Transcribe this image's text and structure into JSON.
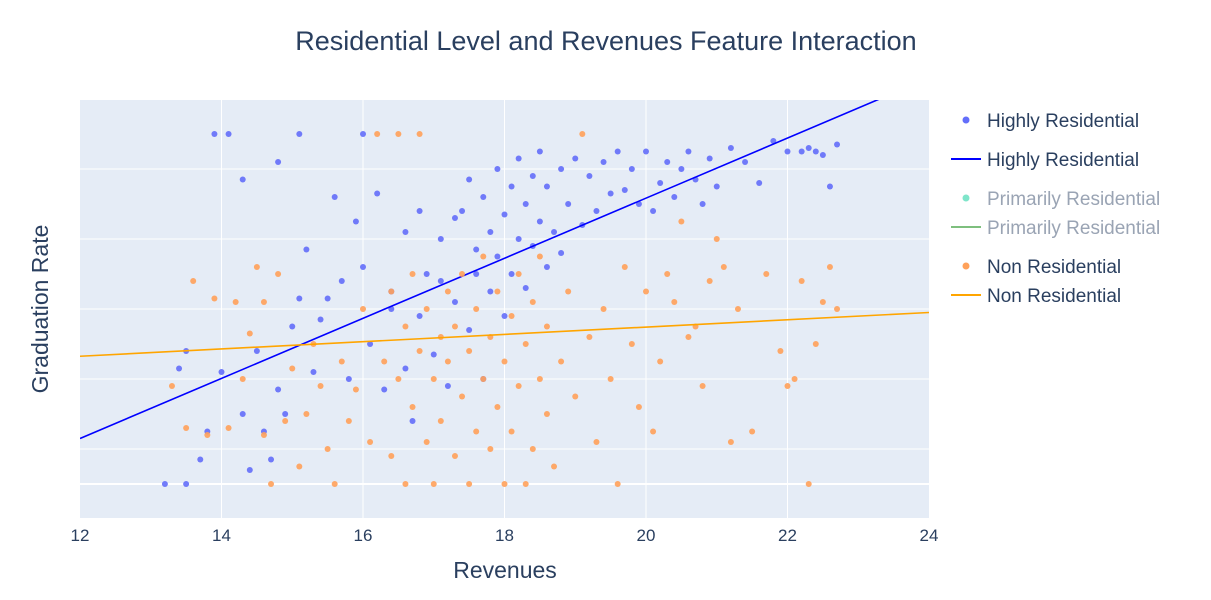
{
  "chart_data": {
    "type": "scatter",
    "title": "Residential Level and Revenues Feature Interaction",
    "xlabel": "Revenues",
    "ylabel": "Graduation Rate",
    "xlim": [
      12,
      24
    ],
    "ylim": [
      0,
      1.15
    ],
    "x_ticks": [
      12,
      14,
      16,
      18,
      20,
      22,
      24
    ],
    "y_ticks": [
      0.1,
      0.3,
      0.5,
      0.7,
      0.9,
      1.1
    ],
    "y_tick_labels_shown": false,
    "grid": true,
    "legend_position": "right",
    "series": [
      {
        "name": "Highly Residential",
        "mode": "markers",
        "color": "#636efa",
        "visible": true,
        "points": [
          [
            13.2,
            0.0
          ],
          [
            13.5,
            0.0
          ],
          [
            13.4,
            0.33
          ],
          [
            13.5,
            0.38
          ],
          [
            13.7,
            0.07
          ],
          [
            13.8,
            0.15
          ],
          [
            13.9,
            1.0
          ],
          [
            14.0,
            0.32
          ],
          [
            14.1,
            1.0
          ],
          [
            14.3,
            0.87
          ],
          [
            14.3,
            0.2
          ],
          [
            14.4,
            0.04
          ],
          [
            14.5,
            0.38
          ],
          [
            14.6,
            0.15
          ],
          [
            14.7,
            0.07
          ],
          [
            14.8,
            0.27
          ],
          [
            14.8,
            0.92
          ],
          [
            14.9,
            0.2
          ],
          [
            15.0,
            0.45
          ],
          [
            15.1,
            1.0
          ],
          [
            15.1,
            0.53
          ],
          [
            15.2,
            0.67
          ],
          [
            15.3,
            0.32
          ],
          [
            15.4,
            0.47
          ],
          [
            15.5,
            0.53
          ],
          [
            15.6,
            0.82
          ],
          [
            15.7,
            0.58
          ],
          [
            15.8,
            0.3
          ],
          [
            15.9,
            0.75
          ],
          [
            16.0,
            0.62
          ],
          [
            16.0,
            1.0
          ],
          [
            16.1,
            0.4
          ],
          [
            16.2,
            0.83
          ],
          [
            16.3,
            0.27
          ],
          [
            16.4,
            0.55
          ],
          [
            16.4,
            0.5
          ],
          [
            16.6,
            0.33
          ],
          [
            16.6,
            0.72
          ],
          [
            16.7,
            0.18
          ],
          [
            16.8,
            0.78
          ],
          [
            16.8,
            0.48
          ],
          [
            16.9,
            0.6
          ],
          [
            17.0,
            0.37
          ],
          [
            17.1,
            0.7
          ],
          [
            17.1,
            0.58
          ],
          [
            17.2,
            0.28
          ],
          [
            17.3,
            0.76
          ],
          [
            17.3,
            0.52
          ],
          [
            17.4,
            0.78
          ],
          [
            17.5,
            0.44
          ],
          [
            17.5,
            0.87
          ],
          [
            17.6,
            0.67
          ],
          [
            17.6,
            0.6
          ],
          [
            17.7,
            0.3
          ],
          [
            17.7,
            0.82
          ],
          [
            17.8,
            0.72
          ],
          [
            17.8,
            0.55
          ],
          [
            17.9,
            0.9
          ],
          [
            17.9,
            0.65
          ],
          [
            18.0,
            0.77
          ],
          [
            18.0,
            0.48
          ],
          [
            18.1,
            0.85
          ],
          [
            18.1,
            0.6
          ],
          [
            18.2,
            0.7
          ],
          [
            18.2,
            0.93
          ],
          [
            18.3,
            0.8
          ],
          [
            18.3,
            0.56
          ],
          [
            18.4,
            0.88
          ],
          [
            18.4,
            0.68
          ],
          [
            18.5,
            0.75
          ],
          [
            18.5,
            0.95
          ],
          [
            18.6,
            0.62
          ],
          [
            18.6,
            0.85
          ],
          [
            18.7,
            0.72
          ],
          [
            18.8,
            0.9
          ],
          [
            18.8,
            0.66
          ],
          [
            18.9,
            0.8
          ],
          [
            19.0,
            0.93
          ],
          [
            19.1,
            0.74
          ],
          [
            19.2,
            0.88
          ],
          [
            19.3,
            0.78
          ],
          [
            19.4,
            0.92
          ],
          [
            19.5,
            0.83
          ],
          [
            19.6,
            0.95
          ],
          [
            19.7,
            0.84
          ],
          [
            19.8,
            0.9
          ],
          [
            19.9,
            0.8
          ],
          [
            20.0,
            0.95
          ],
          [
            20.1,
            0.78
          ],
          [
            20.2,
            0.86
          ],
          [
            20.3,
            0.92
          ],
          [
            20.4,
            0.82
          ],
          [
            20.5,
            0.9
          ],
          [
            20.6,
            0.95
          ],
          [
            20.7,
            0.87
          ],
          [
            20.8,
            0.8
          ],
          [
            20.9,
            0.93
          ],
          [
            21.0,
            0.85
          ],
          [
            21.2,
            0.96
          ],
          [
            21.4,
            0.92
          ],
          [
            21.6,
            0.86
          ],
          [
            21.8,
            0.98
          ],
          [
            22.0,
            0.95
          ],
          [
            22.2,
            0.95
          ],
          [
            22.3,
            0.96
          ],
          [
            22.4,
            0.95
          ],
          [
            22.5,
            0.94
          ],
          [
            22.6,
            0.85
          ],
          [
            22.7,
            0.97
          ]
        ]
      },
      {
        "name": "Highly Residential",
        "mode": "lines",
        "color": "#0000ff",
        "visible": true,
        "line": [
          [
            12.0,
            0.13
          ],
          [
            23.3,
            1.1
          ]
        ]
      },
      {
        "name": "Primarily Residential",
        "mode": "markers",
        "color": "#00cc96",
        "visible": false,
        "points": []
      },
      {
        "name": "Primarily Residential",
        "mode": "lines",
        "color": "#008000",
        "visible": false,
        "line": []
      },
      {
        "name": "Non Residential",
        "mode": "markers",
        "color": "#ffa15a",
        "visible": true,
        "points": [
          [
            13.3,
            0.28
          ],
          [
            13.5,
            0.16
          ],
          [
            13.6,
            0.58
          ],
          [
            13.8,
            0.14
          ],
          [
            13.9,
            0.53
          ],
          [
            14.1,
            0.16
          ],
          [
            14.2,
            0.52
          ],
          [
            14.3,
            0.3
          ],
          [
            14.4,
            0.43
          ],
          [
            14.5,
            0.62
          ],
          [
            14.6,
            0.52
          ],
          [
            14.6,
            0.14
          ],
          [
            14.7,
            0.0
          ],
          [
            14.8,
            0.6
          ],
          [
            14.9,
            0.18
          ],
          [
            15.0,
            0.33
          ],
          [
            15.1,
            0.05
          ],
          [
            15.2,
            0.2
          ],
          [
            15.3,
            0.4
          ],
          [
            15.4,
            0.28
          ],
          [
            15.5,
            0.1
          ],
          [
            15.6,
            0.0
          ],
          [
            15.7,
            0.35
          ],
          [
            15.8,
            0.18
          ],
          [
            15.9,
            0.27
          ],
          [
            16.0,
            0.5
          ],
          [
            16.1,
            0.12
          ],
          [
            16.2,
            1.0
          ],
          [
            16.3,
            0.35
          ],
          [
            16.4,
            0.55
          ],
          [
            16.4,
            0.08
          ],
          [
            16.5,
            1.0
          ],
          [
            16.5,
            0.3
          ],
          [
            16.6,
            0.0
          ],
          [
            16.6,
            0.45
          ],
          [
            16.7,
            0.6
          ],
          [
            16.7,
            0.22
          ],
          [
            16.8,
            0.38
          ],
          [
            16.8,
            1.0
          ],
          [
            16.9,
            0.12
          ],
          [
            16.9,
            0.5
          ],
          [
            17.0,
            0.3
          ],
          [
            17.0,
            0.0
          ],
          [
            17.1,
            0.42
          ],
          [
            17.1,
            0.18
          ],
          [
            17.2,
            0.55
          ],
          [
            17.2,
            0.35
          ],
          [
            17.3,
            0.08
          ],
          [
            17.3,
            0.45
          ],
          [
            17.4,
            0.25
          ],
          [
            17.4,
            0.6
          ],
          [
            17.5,
            0.38
          ],
          [
            17.5,
            0.0
          ],
          [
            17.6,
            0.15
          ],
          [
            17.6,
            0.5
          ],
          [
            17.7,
            0.3
          ],
          [
            17.7,
            0.65
          ],
          [
            17.8,
            0.42
          ],
          [
            17.8,
            0.1
          ],
          [
            17.9,
            0.55
          ],
          [
            17.9,
            0.22
          ],
          [
            18.0,
            0.0
          ],
          [
            18.0,
            0.35
          ],
          [
            18.1,
            0.48
          ],
          [
            18.1,
            0.15
          ],
          [
            18.2,
            0.6
          ],
          [
            18.2,
            0.28
          ],
          [
            18.3,
            0.0
          ],
          [
            18.3,
            0.4
          ],
          [
            18.4,
            0.1
          ],
          [
            18.4,
            0.52
          ],
          [
            18.5,
            0.3
          ],
          [
            18.5,
            0.65
          ],
          [
            18.6,
            0.2
          ],
          [
            18.6,
            0.45
          ],
          [
            18.7,
            0.05
          ],
          [
            18.8,
            0.35
          ],
          [
            18.9,
            0.55
          ],
          [
            19.0,
            0.25
          ],
          [
            19.1,
            1.0
          ],
          [
            19.2,
            0.42
          ],
          [
            19.3,
            0.12
          ],
          [
            19.4,
            0.5
          ],
          [
            19.5,
            0.3
          ],
          [
            19.6,
            0.0
          ],
          [
            19.7,
            0.62
          ],
          [
            19.8,
            0.4
          ],
          [
            19.9,
            0.22
          ],
          [
            20.0,
            0.55
          ],
          [
            20.1,
            0.15
          ],
          [
            20.2,
            0.35
          ],
          [
            20.3,
            0.6
          ],
          [
            20.4,
            0.52
          ],
          [
            20.5,
            0.75
          ],
          [
            20.6,
            0.42
          ],
          [
            20.7,
            0.45
          ],
          [
            20.8,
            0.28
          ],
          [
            20.9,
            0.58
          ],
          [
            21.0,
            0.7
          ],
          [
            21.1,
            0.62
          ],
          [
            21.2,
            0.12
          ],
          [
            21.3,
            0.5
          ],
          [
            21.5,
            0.15
          ],
          [
            21.7,
            0.6
          ],
          [
            21.9,
            0.38
          ],
          [
            22.0,
            0.28
          ],
          [
            22.1,
            0.3
          ],
          [
            22.2,
            0.58
          ],
          [
            22.3,
            0.0
          ],
          [
            22.4,
            0.4
          ],
          [
            22.5,
            0.52
          ],
          [
            22.6,
            0.62
          ],
          [
            22.7,
            0.5
          ]
        ]
      },
      {
        "name": "Non Residential",
        "mode": "lines",
        "color": "#ffa500",
        "visible": true,
        "line": [
          [
            12.0,
            0.365
          ],
          [
            24.0,
            0.49
          ]
        ]
      }
    ]
  }
}
